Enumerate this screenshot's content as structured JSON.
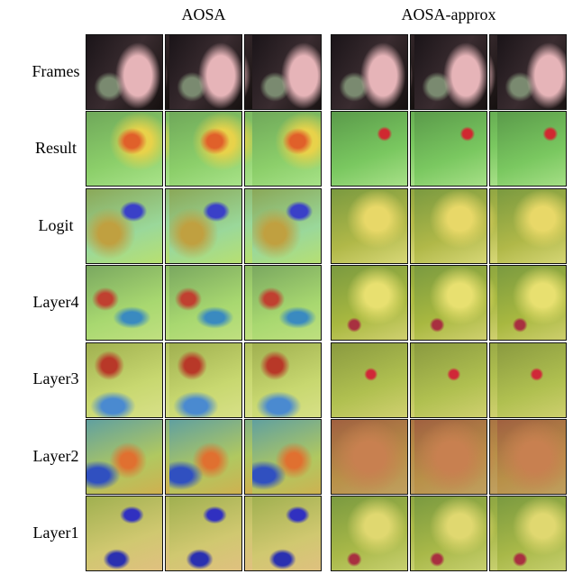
{
  "header": {
    "columns": [
      "AOSA",
      "AOSA-approx"
    ]
  },
  "rows": [
    "Frames",
    "Result",
    "Logit",
    "Layer4",
    "Layer3",
    "Layer2",
    "Layer1"
  ]
}
